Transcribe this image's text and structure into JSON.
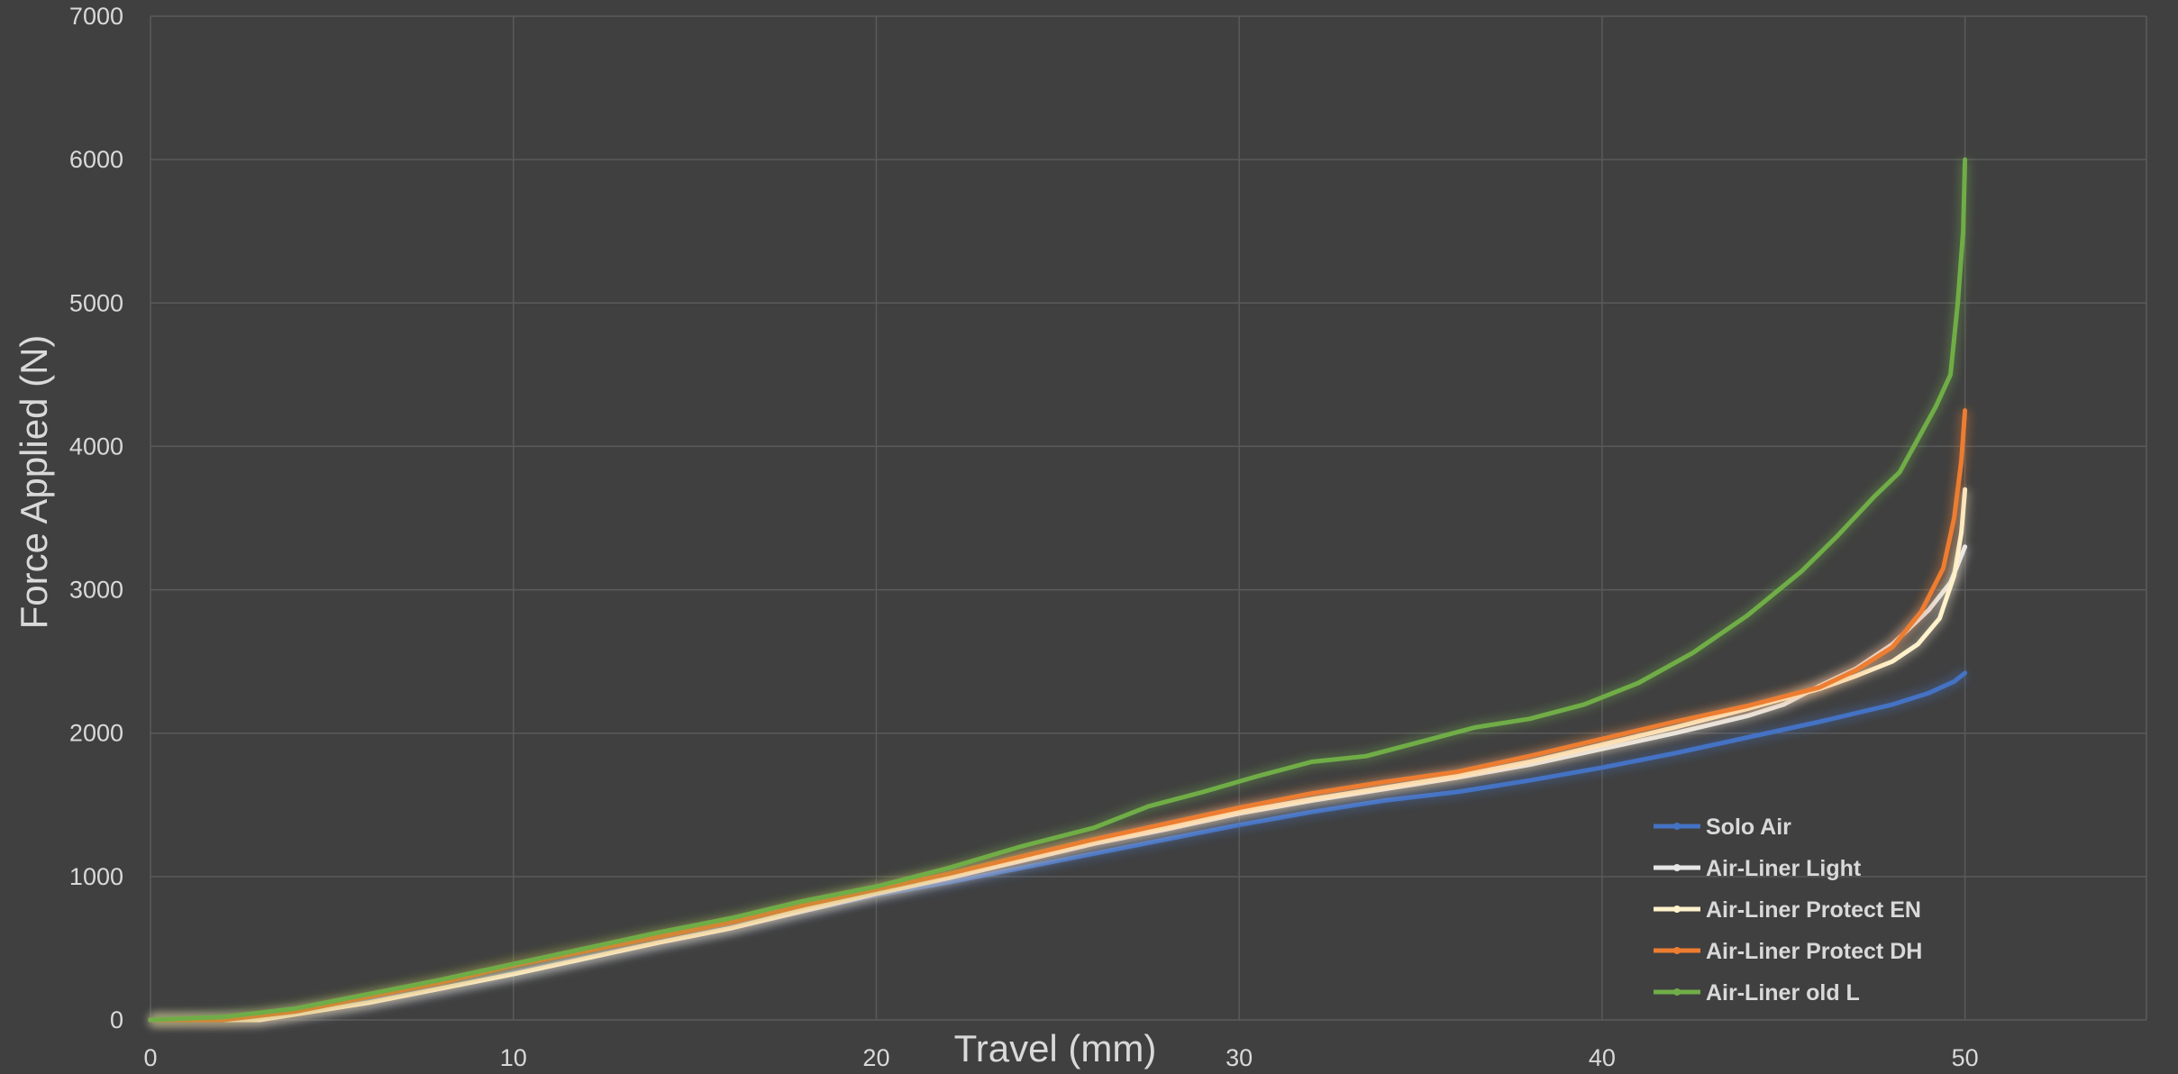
{
  "chart_data": {
    "type": "line",
    "title": "",
    "xlabel": "Travel (mm)",
    "ylabel": "Force Applied (N)",
    "xlim": [
      0,
      55
    ],
    "ylim": [
      0,
      7000
    ],
    "xticks": [
      0,
      10,
      20,
      30,
      40,
      50
    ],
    "yticks": [
      0,
      1000,
      2000,
      3000,
      4000,
      5000,
      6000,
      7000
    ],
    "grid": true,
    "legend_position": "bottom-right",
    "series": [
      {
        "name": "Solo Air",
        "color": "#4472c4",
        "points": [
          [
            0,
            0
          ],
          [
            2,
            0
          ],
          [
            4,
            40
          ],
          [
            6,
            130
          ],
          [
            8,
            220
          ],
          [
            10,
            330
          ],
          [
            12,
            440
          ],
          [
            14,
            540
          ],
          [
            16,
            650
          ],
          [
            18,
            760
          ],
          [
            20,
            870
          ],
          [
            22,
            960
          ],
          [
            24,
            1060
          ],
          [
            26,
            1160
          ],
          [
            28,
            1260
          ],
          [
            30,
            1360
          ],
          [
            32,
            1450
          ],
          [
            34,
            1530
          ],
          [
            36,
            1590
          ],
          [
            38,
            1670
          ],
          [
            40,
            1760
          ],
          [
            42,
            1860
          ],
          [
            44,
            1970
          ],
          [
            46,
            2080
          ],
          [
            48,
            2200
          ],
          [
            49,
            2280
          ],
          [
            49.7,
            2360
          ],
          [
            50,
            2420
          ]
        ]
      },
      {
        "name": "Air-Liner Light",
        "color": "#e7e6e6",
        "points": [
          [
            0,
            0
          ],
          [
            2,
            0
          ],
          [
            3,
            0
          ],
          [
            4,
            40
          ],
          [
            6,
            120
          ],
          [
            8,
            220
          ],
          [
            10,
            320
          ],
          [
            12,
            430
          ],
          [
            14,
            540
          ],
          [
            16,
            640
          ],
          [
            18,
            760
          ],
          [
            20,
            880
          ],
          [
            22,
            990
          ],
          [
            24,
            1110
          ],
          [
            26,
            1230
          ],
          [
            28,
            1330
          ],
          [
            30,
            1440
          ],
          [
            32,
            1530
          ],
          [
            34,
            1610
          ],
          [
            36,
            1690
          ],
          [
            38,
            1780
          ],
          [
            40,
            1890
          ],
          [
            42,
            2000
          ],
          [
            44,
            2120
          ],
          [
            45,
            2200
          ],
          [
            46,
            2330
          ],
          [
            47,
            2450
          ],
          [
            48,
            2620
          ],
          [
            49,
            2860
          ],
          [
            49.6,
            3050
          ],
          [
            50,
            3300
          ]
        ]
      },
      {
        "name": "Air-Liner Protect EN",
        "color": "#fff2cc",
        "points": [
          [
            0,
            0
          ],
          [
            2,
            0
          ],
          [
            3,
            0
          ],
          [
            4,
            40
          ],
          [
            6,
            120
          ],
          [
            8,
            220
          ],
          [
            10,
            320
          ],
          [
            12,
            430
          ],
          [
            14,
            540
          ],
          [
            16,
            640
          ],
          [
            18,
            770
          ],
          [
            20,
            890
          ],
          [
            22,
            1000
          ],
          [
            24,
            1120
          ],
          [
            26,
            1240
          ],
          [
            28,
            1340
          ],
          [
            30,
            1450
          ],
          [
            32,
            1540
          ],
          [
            34,
            1620
          ],
          [
            36,
            1700
          ],
          [
            38,
            1800
          ],
          [
            40,
            1920
          ],
          [
            42,
            2040
          ],
          [
            44,
            2170
          ],
          [
            46,
            2310
          ],
          [
            47,
            2400
          ],
          [
            48,
            2500
          ],
          [
            48.7,
            2620
          ],
          [
            49.3,
            2800
          ],
          [
            49.7,
            3100
          ],
          [
            49.9,
            3400
          ],
          [
            50,
            3700
          ]
        ]
      },
      {
        "name": "Air-Liner Protect DH",
        "color": "#ed7d31",
        "points": [
          [
            0,
            0
          ],
          [
            2,
            0
          ],
          [
            4,
            60
          ],
          [
            6,
            160
          ],
          [
            8,
            260
          ],
          [
            10,
            380
          ],
          [
            12,
            480
          ],
          [
            14,
            580
          ],
          [
            16,
            680
          ],
          [
            18,
            800
          ],
          [
            20,
            910
          ],
          [
            22,
            1020
          ],
          [
            24,
            1140
          ],
          [
            26,
            1260
          ],
          [
            28,
            1370
          ],
          [
            30,
            1480
          ],
          [
            32,
            1580
          ],
          [
            34,
            1660
          ],
          [
            36,
            1730
          ],
          [
            38,
            1840
          ],
          [
            40,
            1960
          ],
          [
            42,
            2080
          ],
          [
            44,
            2190
          ],
          [
            46,
            2320
          ],
          [
            47,
            2440
          ],
          [
            48,
            2600
          ],
          [
            48.8,
            2850
          ],
          [
            49.4,
            3150
          ],
          [
            49.7,
            3500
          ],
          [
            49.9,
            3900
          ],
          [
            50,
            4250
          ]
        ]
      },
      {
        "name": "Air-Liner old L",
        "color": "#70ad47",
        "points": [
          [
            0,
            0
          ],
          [
            2,
            20
          ],
          [
            4,
            80
          ],
          [
            6,
            180
          ],
          [
            8,
            280
          ],
          [
            10,
            390
          ],
          [
            12,
            500
          ],
          [
            14,
            610
          ],
          [
            16,
            710
          ],
          [
            18,
            830
          ],
          [
            20,
            930
          ],
          [
            22,
            1060
          ],
          [
            24,
            1210
          ],
          [
            26,
            1340
          ],
          [
            27.5,
            1490
          ],
          [
            29,
            1590
          ],
          [
            30.5,
            1700
          ],
          [
            32,
            1800
          ],
          [
            33.5,
            1840
          ],
          [
            35,
            1940
          ],
          [
            36.5,
            2040
          ],
          [
            38,
            2100
          ],
          [
            39.5,
            2200
          ],
          [
            41,
            2350
          ],
          [
            42.5,
            2560
          ],
          [
            44,
            2820
          ],
          [
            45.5,
            3130
          ],
          [
            46.5,
            3380
          ],
          [
            47.5,
            3650
          ],
          [
            48.2,
            3820
          ],
          [
            48.7,
            4050
          ],
          [
            49.2,
            4280
          ],
          [
            49.6,
            4500
          ],
          [
            49.8,
            5000
          ],
          [
            49.95,
            5500
          ],
          [
            50,
            6000
          ]
        ]
      }
    ]
  }
}
